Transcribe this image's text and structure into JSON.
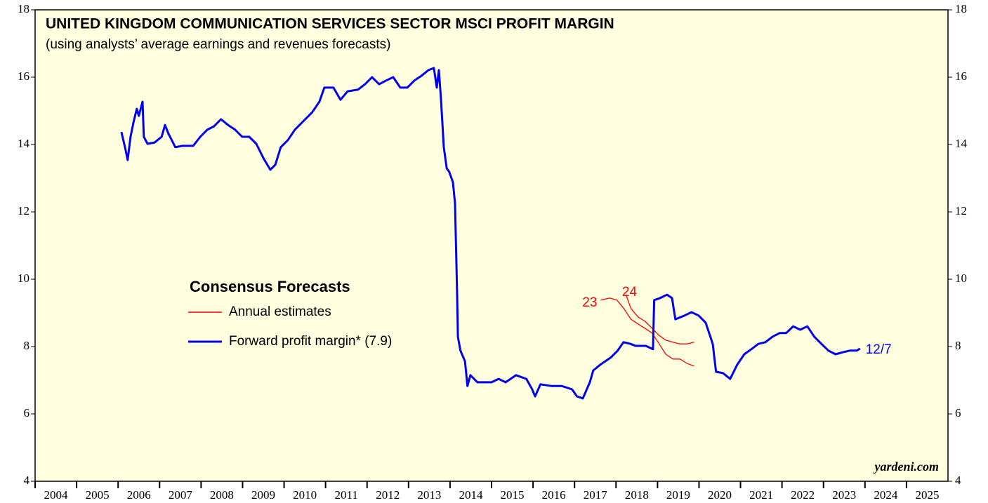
{
  "chart_data": {
    "type": "line",
    "title": "UNITED KINGDOM COMMUNICATION SERVICES SECTOR MSCI PROFIT MARGIN",
    "subtitle": "(using analysts’ average earnings and revenues forecasts)",
    "legend_title": "Consensus Forecasts",
    "source": "yardeni.com",
    "xlim": [
      2004,
      2026
    ],
    "xticks": [
      2004,
      2005,
      2006,
      2007,
      2008,
      2009,
      2010,
      2011,
      2012,
      2013,
      2014,
      2015,
      2016,
      2017,
      2018,
      2019,
      2020,
      2021,
      2022,
      2023,
      2024,
      2025
    ],
    "ylim": [
      4,
      18
    ],
    "yticks": [
      4,
      6,
      8,
      10,
      12,
      14,
      16,
      18
    ],
    "background": "#ffffe0",
    "series": [
      {
        "name": "Annual estimates",
        "color": "#ff0000",
        "lines": [
          {
            "label": "23",
            "x": [
              2017.63,
              2017.85,
              2018.02,
              2018.19,
              2018.36,
              2018.53,
              2018.7,
              2018.87,
              2019.04,
              2019.2,
              2019.37,
              2019.54,
              2019.71,
              2019.88
            ],
            "values": [
              9.38,
              9.44,
              9.38,
              9.13,
              8.81,
              8.67,
              8.54,
              8.4,
              8.08,
              7.77,
              7.63,
              7.63,
              7.5,
              7.42
            ]
          },
          {
            "label": "24",
            "x": [
              2018.24,
              2018.36,
              2018.53,
              2018.7,
              2018.87,
              2019.04,
              2019.2,
              2019.37,
              2019.54,
              2019.71,
              2019.88
            ],
            "values": [
              9.54,
              9.13,
              8.88,
              8.75,
              8.54,
              8.33,
              8.19,
              8.13,
              8.08,
              8.08,
              8.13
            ]
          }
        ]
      },
      {
        "name": "Forward profit margin* (7.9)",
        "color": "#0000ee",
        "end_label": "12/7",
        "x": [
          2006.08,
          2006.17,
          2006.23,
          2006.3,
          2006.37,
          2006.45,
          2006.5,
          2006.59,
          2006.62,
          2006.71,
          2006.88,
          2007.05,
          2007.13,
          2007.21,
          2007.38,
          2007.55,
          2007.81,
          2007.98,
          2008.15,
          2008.31,
          2008.48,
          2008.65,
          2008.82,
          2008.99,
          2009.16,
          2009.33,
          2009.5,
          2009.67,
          2009.79,
          2009.92,
          2010.09,
          2010.26,
          2010.51,
          2010.68,
          2010.85,
          2010.97,
          2011.19,
          2011.36,
          2011.53,
          2011.78,
          2011.95,
          2012.12,
          2012.29,
          2012.46,
          2012.63,
          2012.8,
          2012.97,
          2013.14,
          2013.31,
          2013.48,
          2013.61,
          2013.68,
          2013.73,
          2013.78,
          2013.85,
          2013.92,
          2013.98,
          2014.07,
          2014.12,
          2014.17,
          2014.19,
          2014.25,
          2014.36,
          2014.42,
          2014.49,
          2014.66,
          2014.83,
          2015.0,
          2015.17,
          2015.34,
          2015.59,
          2015.84,
          2015.98,
          2016.05,
          2016.18,
          2016.44,
          2016.69,
          2016.94,
          2017.06,
          2017.2,
          2017.37,
          2017.45,
          2017.62,
          2017.87,
          2018.04,
          2018.18,
          2018.35,
          2018.47,
          2018.72,
          2018.89,
          2018.92,
          2019.06,
          2019.23,
          2019.35,
          2019.43,
          2019.65,
          2019.82,
          2019.99,
          2020.16,
          2020.33,
          2020.41,
          2020.58,
          2020.75,
          2020.92,
          2021.09,
          2021.26,
          2021.43,
          2021.6,
          2021.77,
          2021.94,
          2022.1,
          2022.27,
          2022.44,
          2022.61,
          2022.78,
          2022.95,
          2023.12,
          2023.29,
          2023.46,
          2023.63,
          2023.8,
          2023.88
        ],
        "values": [
          14.37,
          13.9,
          13.54,
          14.23,
          14.65,
          15.06,
          14.85,
          15.27,
          14.23,
          14.02,
          14.06,
          14.23,
          14.58,
          14.33,
          13.92,
          13.96,
          13.96,
          14.23,
          14.44,
          14.54,
          14.75,
          14.58,
          14.44,
          14.23,
          14.23,
          14.02,
          13.6,
          13.25,
          13.4,
          13.92,
          14.13,
          14.44,
          14.75,
          14.96,
          15.27,
          15.69,
          15.69,
          15.33,
          15.58,
          15.63,
          15.79,
          16.0,
          15.79,
          15.9,
          16.0,
          15.69,
          15.69,
          15.9,
          16.04,
          16.21,
          16.27,
          15.69,
          16.21,
          15.38,
          13.92,
          13.29,
          13.19,
          12.88,
          12.25,
          9.54,
          8.29,
          7.88,
          7.56,
          6.83,
          7.15,
          6.94,
          6.94,
          6.94,
          7.04,
          6.94,
          7.15,
          7.04,
          6.73,
          6.52,
          6.88,
          6.83,
          6.83,
          6.73,
          6.52,
          6.46,
          6.94,
          7.29,
          7.46,
          7.67,
          7.88,
          8.13,
          8.08,
          8.02,
          8.02,
          7.92,
          9.38,
          9.44,
          9.54,
          9.44,
          8.81,
          8.92,
          9.02,
          8.92,
          8.71,
          8.08,
          7.25,
          7.21,
          7.04,
          7.46,
          7.77,
          7.92,
          8.08,
          8.13,
          8.29,
          8.4,
          8.4,
          8.6,
          8.5,
          8.6,
          8.29,
          8.08,
          7.88,
          7.77,
          7.83,
          7.88,
          7.88,
          7.94
        ]
      }
    ]
  }
}
